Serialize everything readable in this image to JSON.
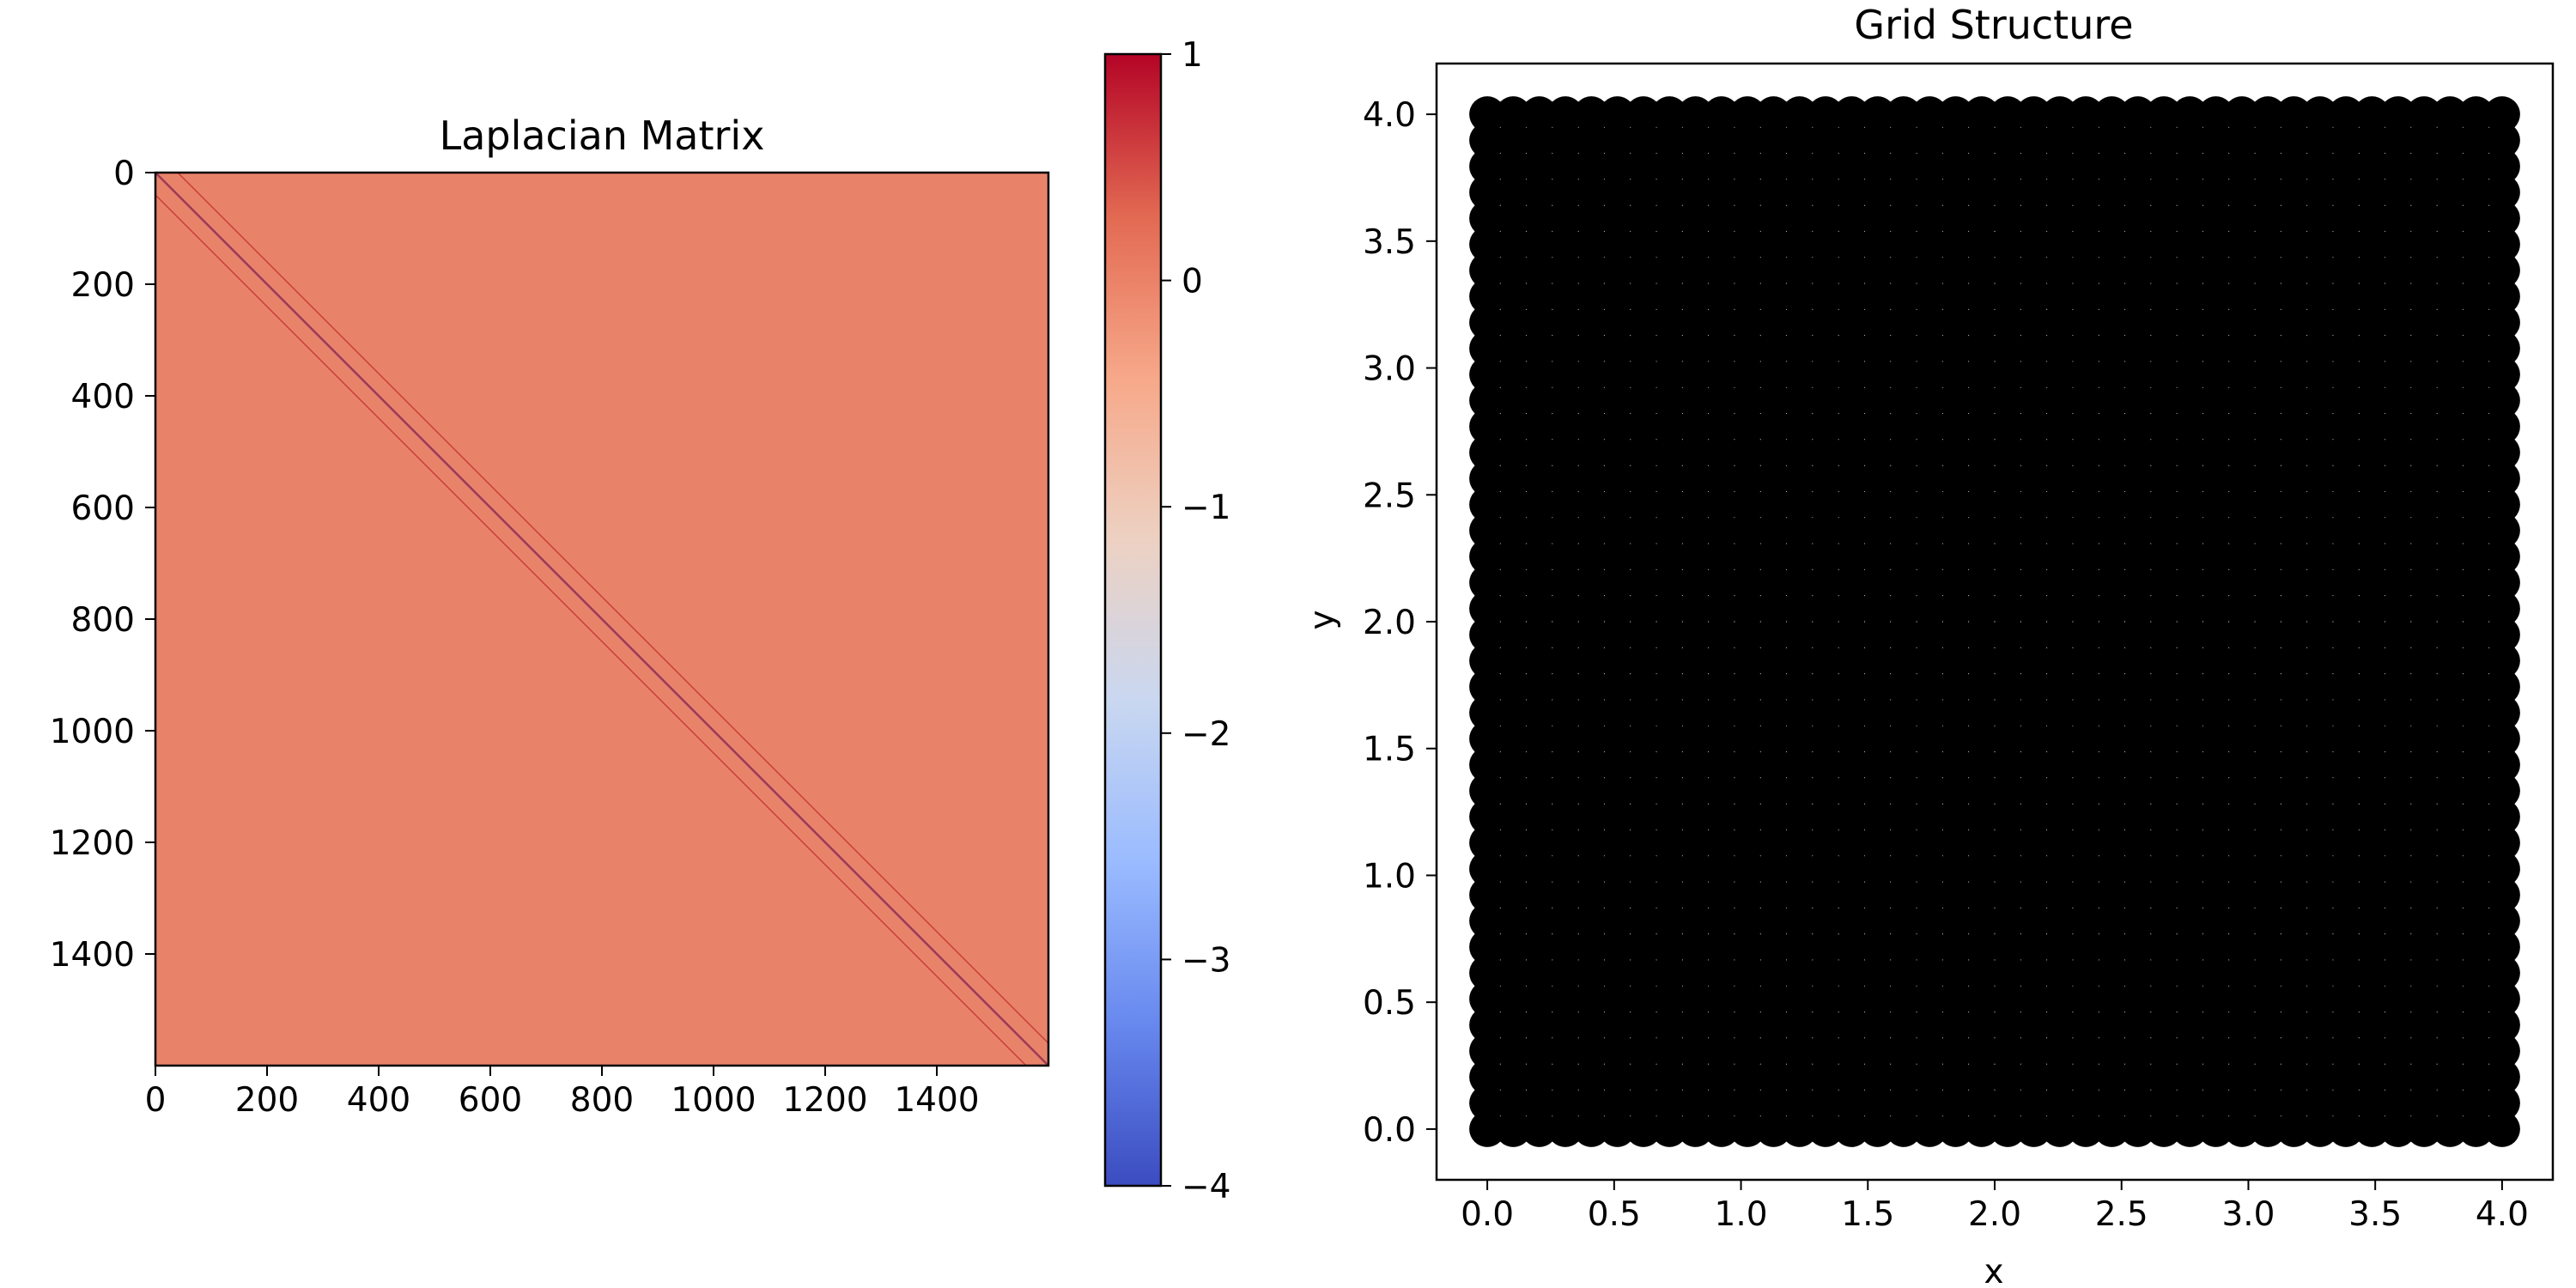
{
  "chart_data": [
    {
      "type": "heatmap",
      "title": "Laplacian Matrix",
      "matrix_size": 1600,
      "grid_side": 40,
      "diagonal_value": -4,
      "neighbor_value": 1,
      "background_value": 0,
      "band_offsets": [
        1,
        40
      ],
      "x_ticks": [
        0,
        200,
        400,
        600,
        800,
        1000,
        1200,
        1400
      ],
      "y_ticks": [
        0,
        200,
        400,
        600,
        800,
        1000,
        1200,
        1400
      ],
      "x_tick_labels": [
        "0",
        "200",
        "400",
        "600",
        "800",
        "1000",
        "1200",
        "1400"
      ],
      "y_tick_labels": [
        "0",
        "200",
        "400",
        "600",
        "800",
        "1000",
        "1200",
        "1400"
      ],
      "xlim": [
        0,
        1600
      ],
      "ylim": [
        0,
        1600
      ],
      "y_inverted": true,
      "colormap": "coolwarm",
      "colorbar": {
        "vmin": -4,
        "vmax": 1,
        "ticks": [
          1,
          0,
          -1,
          -2,
          -3,
          -4
        ],
        "tick_labels": [
          "1",
          "0",
          "−1",
          "−2",
          "−3",
          "−4"
        ],
        "colors": [
          "#3b4cc0",
          "#6788ee",
          "#9abbff",
          "#c9d7f0",
          "#edd1c2",
          "#f7a889",
          "#e26952",
          "#b40426"
        ]
      },
      "cell_color_zero": "#e8836a",
      "cell_color_diagonal": "#4a5cc8",
      "cell_color_one": "#c22f2d"
    },
    {
      "type": "scatter",
      "title": "Grid Structure",
      "xlabel": "x",
      "ylabel": "y",
      "grid_points_per_side": 40,
      "x_range": [
        0,
        4
      ],
      "y_range": [
        0,
        4
      ],
      "xlim": [
        -0.2,
        4.2
      ],
      "ylim": [
        -0.2,
        4.2
      ],
      "x_ticks": [
        0.0,
        0.5,
        1.0,
        1.5,
        2.0,
        2.5,
        3.0,
        3.5,
        4.0
      ],
      "y_ticks": [
        0.0,
        0.5,
        1.0,
        1.5,
        2.0,
        2.5,
        3.0,
        3.5,
        4.0
      ],
      "x_tick_labels": [
        "0.0",
        "0.5",
        "1.0",
        "1.5",
        "2.0",
        "2.5",
        "3.0",
        "3.5",
        "4.0"
      ],
      "y_tick_labels": [
        "0.0",
        "0.5",
        "1.0",
        "1.5",
        "2.0",
        "2.5",
        "3.0",
        "3.5",
        "4.0"
      ],
      "marker_color": "#000000",
      "grid": false
    }
  ]
}
